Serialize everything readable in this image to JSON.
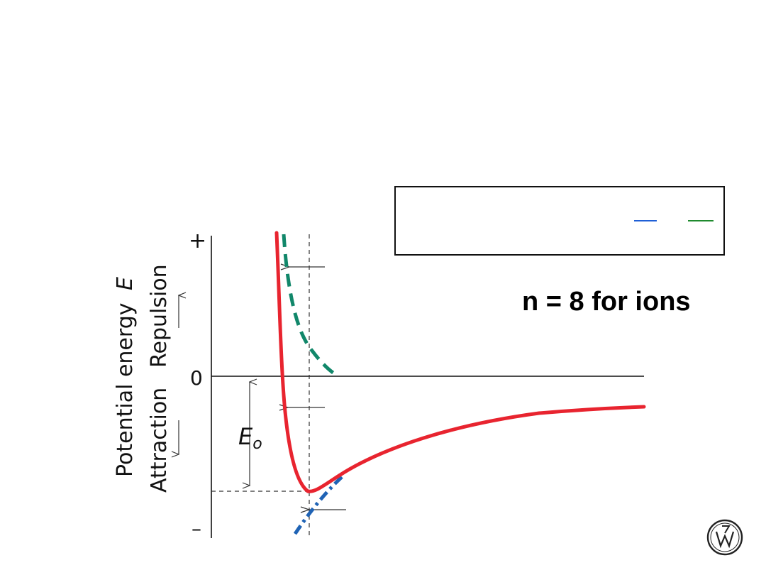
{
  "diagram": {
    "y_axis": {
      "label_main": "Potential energy",
      "label_symbol": "E",
      "repulsion_label": "Repulsion",
      "attraction_label": "Attraction",
      "tick_plus": "+",
      "tick_zero": "0",
      "tick_minus": "–"
    },
    "equilibrium_energy": {
      "symbol": "E",
      "subscript": "o"
    },
    "curves": [
      {
        "name": "net-energy",
        "color": "#e8242f",
        "style": "solid"
      },
      {
        "name": "repulsive-energy",
        "color": "#11876a",
        "style": "dashed"
      },
      {
        "name": "attractive-energy",
        "color": "#1f63b5",
        "style": "dash-dot"
      }
    ]
  },
  "note_box": {
    "blue_marker_color": "#1f5fd6",
    "green_marker_color": "#1f8a2e"
  },
  "ions_note": "n = 8 for ions",
  "publisher_logo": {
    "icon": "wiley-logo-icon"
  }
}
